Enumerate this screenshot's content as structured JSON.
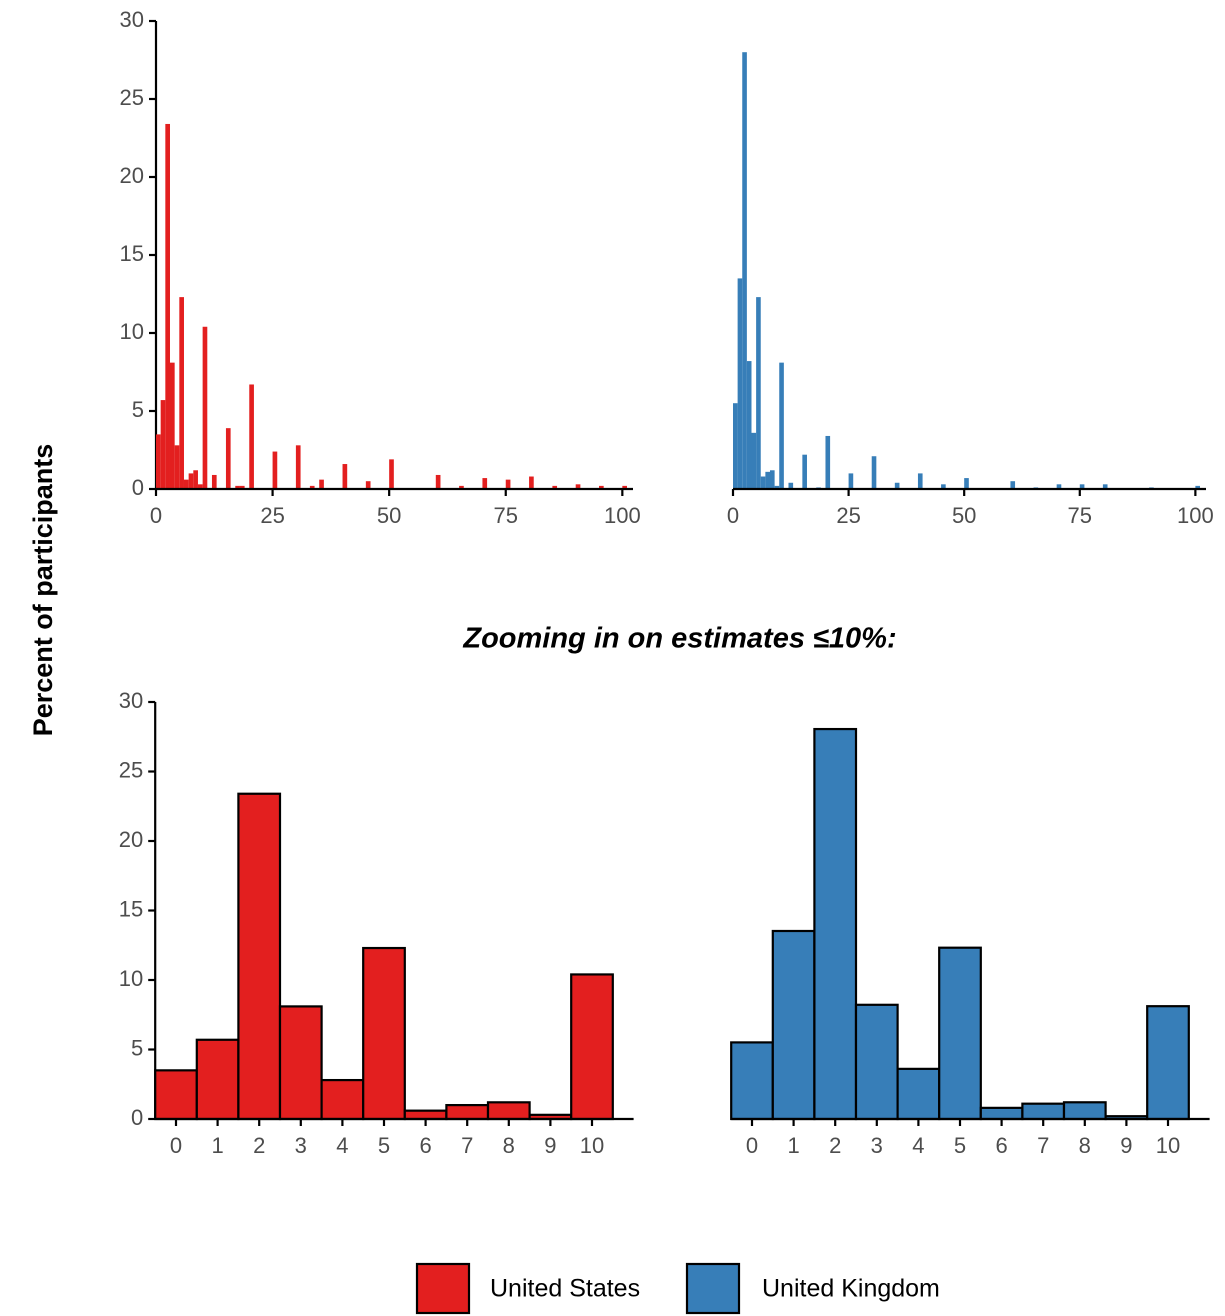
{
  "chart_data": [
    {
      "type": "histogram-bars",
      "ylabel": "Percent of participants",
      "x": [
        0,
        1,
        2,
        3,
        4,
        5,
        6,
        7,
        8,
        9,
        10,
        12,
        15,
        17,
        18,
        20,
        25,
        30,
        33,
        35,
        40,
        45,
        50,
        60,
        65,
        70,
        75,
        80,
        85,
        90,
        95,
        100
      ],
      "series": [
        {
          "name": "United States",
          "color": "#e31f1f",
          "values": [
            3.5,
            5.7,
            23.4,
            8.1,
            2.8,
            12.3,
            0.6,
            1.0,
            1.2,
            0.3,
            10.4,
            0.9,
            3.9,
            0.2,
            0.2,
            6.7,
            2.4,
            2.8,
            0.2,
            0.6,
            1.6,
            0.5,
            1.9,
            0.9,
            0.2,
            0.7,
            0.6,
            0.8,
            0.2,
            0.3,
            0.2,
            0.2
          ]
        }
      ],
      "xlim": [
        0,
        101
      ],
      "xticks": [
        0,
        25,
        50,
        75,
        100
      ],
      "ylim": [
        0,
        30
      ],
      "yticks": [
        0,
        5,
        10,
        15,
        20,
        25,
        30
      ]
    },
    {
      "type": "histogram-bars",
      "x": [
        0,
        1,
        2,
        3,
        4,
        5,
        6,
        7,
        8,
        9,
        10,
        12,
        15,
        18,
        20,
        25,
        30,
        35,
        40,
        45,
        50,
        60,
        65,
        70,
        75,
        80,
        90,
        100
      ],
      "series": [
        {
          "name": "United Kingdom",
          "color": "#377eb8",
          "values": [
            5.5,
            13.5,
            28.0,
            8.2,
            3.6,
            12.3,
            0.8,
            1.1,
            1.2,
            0.2,
            8.1,
            0.4,
            2.2,
            0.1,
            3.4,
            1.0,
            2.1,
            0.4,
            1.0,
            0.3,
            0.7,
            0.5,
            0.1,
            0.3,
            0.3,
            0.3,
            0.1,
            0.2
          ]
        }
      ],
      "xlim": [
        0,
        101
      ],
      "xticks": [
        0,
        25,
        50,
        75,
        100
      ],
      "ylim": [
        0,
        30
      ]
    },
    {
      "type": "bar",
      "title": "Zooming in on estimates ≤10%:",
      "categories": [
        "0",
        "1",
        "2",
        "3",
        "4",
        "5",
        "6",
        "7",
        "8",
        "9",
        "10"
      ],
      "series": [
        {
          "name": "United States",
          "color": "#e31f1f",
          "values": [
            3.5,
            5.7,
            23.4,
            8.1,
            2.8,
            12.3,
            0.6,
            1.0,
            1.2,
            0.3,
            10.4
          ]
        }
      ],
      "ylim": [
        0,
        30
      ],
      "yticks": [
        0,
        5,
        10,
        15,
        20,
        25,
        30
      ]
    },
    {
      "type": "bar",
      "categories": [
        "0",
        "1",
        "2",
        "3",
        "4",
        "5",
        "6",
        "7",
        "8",
        "9",
        "10"
      ],
      "series": [
        {
          "name": "United Kingdom",
          "color": "#377eb8",
          "values": [
            5.5,
            13.5,
            28.0,
            8.2,
            3.6,
            12.3,
            0.8,
            1.1,
            1.2,
            0.2,
            8.1
          ]
        }
      ],
      "ylim": [
        0,
        30
      ]
    }
  ]
}
